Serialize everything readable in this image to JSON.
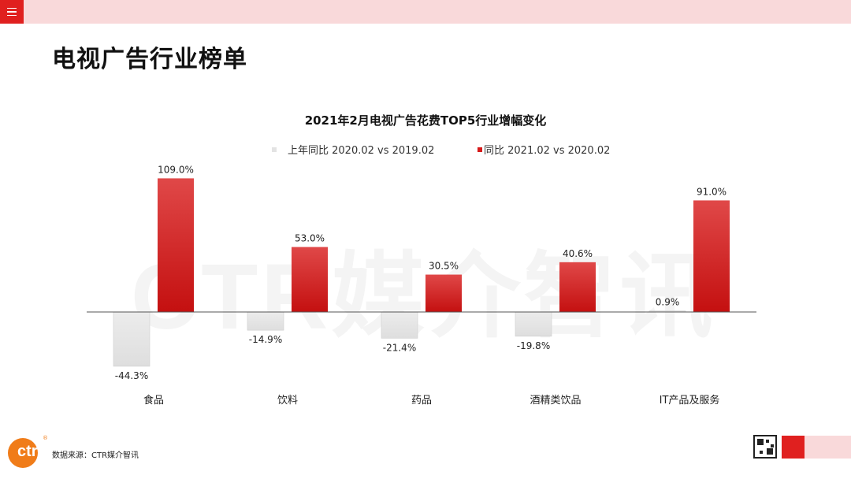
{
  "header": {
    "menu_icon": "hamburger-menu-icon"
  },
  "page": {
    "title": "电视广告行业榜单"
  },
  "watermark": "CTR媒介智讯",
  "chart_data": {
    "type": "bar",
    "title": "2021年2月电视广告花费TOP5行业增幅变化",
    "categories": [
      "食品",
      "饮料",
      "药品",
      "酒精类饮品",
      "IT产品及服务"
    ],
    "series": [
      {
        "name": "上年同比 2020.02 vs 2019.02",
        "values": [
          -44.3,
          -14.9,
          -21.4,
          -19.8,
          0.9
        ],
        "labels": [
          "-44.3%",
          "-14.9%",
          "-21.4%",
          "-19.8%",
          "0.9%"
        ],
        "color": "#e3e3e3"
      },
      {
        "name": "同比 2021.02 vs 2020.02",
        "values": [
          109.0,
          53.0,
          30.5,
          40.6,
          91.0
        ],
        "labels": [
          "109.0%",
          "53.0%",
          "30.5%",
          "40.6%",
          "91.0%"
        ],
        "color": "#d71a1a"
      }
    ],
    "unit": "%",
    "legend": "top-center"
  },
  "footer": {
    "source": "数据来源：CTR媒介智讯",
    "logo_text": "ctr",
    "logo_mark": "®"
  },
  "colors": {
    "accent": "#e0201f",
    "accent_light": "#f9d9da",
    "logo_orange": "#f07c19"
  }
}
